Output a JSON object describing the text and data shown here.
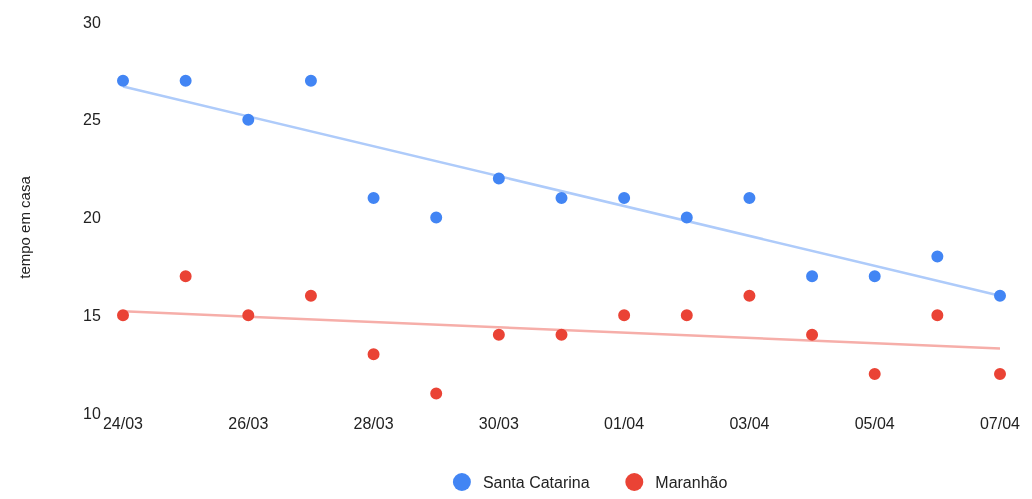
{
  "chart_data": {
    "type": "scatter",
    "ylabel": "tempo em casa",
    "x": [
      "--03-24",
      "--03-25",
      "--03-26",
      "--03-27",
      "--03-28",
      "--03-29",
      "--03-30",
      "--03-31",
      "--04-01",
      "--04-02",
      "--04-03",
      "--04-04",
      "--04-05",
      "--04-06",
      "--04-07"
    ],
    "series": [
      {
        "name": "Santa Catarina",
        "color": "#4285f4",
        "values": [
          27,
          27,
          25,
          27,
          21,
          20,
          22,
          21,
          21,
          20,
          21,
          17,
          17,
          18,
          16
        ]
      },
      {
        "name": "Maranhão",
        "color": "#ea4335",
        "values": [
          15,
          17,
          15,
          16,
          13,
          11,
          14,
          14,
          15,
          15,
          16,
          14,
          12,
          15,
          12
        ]
      },
      {
        "type": "line",
        "marker": "none",
        "color": "#aecbfa",
        "x": [
          "--03-24",
          "--04-07"
        ],
        "values": [
          26.7,
          16
        ]
      },
      {
        "type": "line",
        "marker": "none",
        "color": "#f6aea9",
        "x": [
          "--03-24",
          "--04-07"
        ],
        "values": [
          15.2,
          13.3
        ]
      }
    ],
    "xlim": [
      "--03-24",
      "--04-07"
    ],
    "xticks": [
      {
        "value": "--03-24",
        "label": "24/03"
      },
      {
        "value": "--03-26",
        "label": "26/03"
      },
      {
        "value": "--03-28",
        "label": "28/03"
      },
      {
        "value": "--03-30",
        "label": "30/03"
      },
      {
        "value": "--04-01",
        "label": "01/04"
      },
      {
        "value": "--04-03",
        "label": "03/04"
      },
      {
        "value": "--04-05",
        "label": "05/04"
      },
      {
        "value": "--04-07",
        "label": "07/04"
      }
    ],
    "ylim": [
      10,
      30
    ],
    "yticks": [
      10,
      15,
      20,
      25,
      30
    ],
    "marker": "circle",
    "legend": "bottom",
    "grid": false
  }
}
